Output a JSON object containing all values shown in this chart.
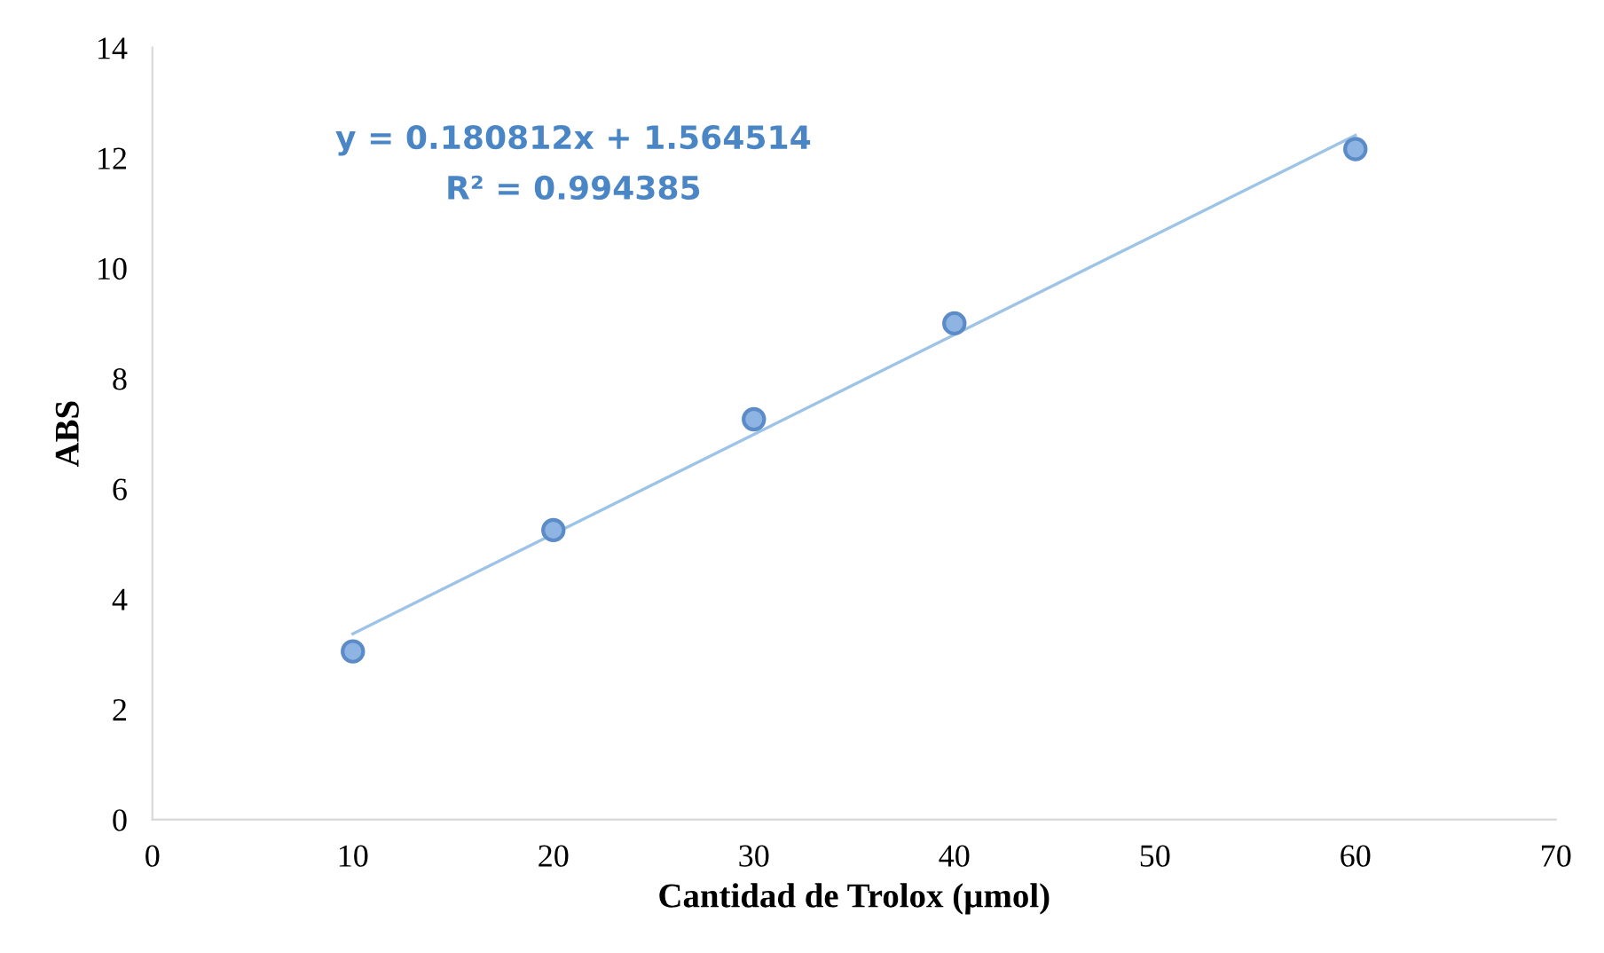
{
  "chart_data": {
    "type": "scatter",
    "xlabel": "Cantidad de Trolox (µmol)",
    "ylabel": "ABS",
    "xlim": [
      0,
      70
    ],
    "xticks": [
      0,
      10,
      20,
      30,
      40,
      50,
      60,
      70
    ],
    "ylim": [
      0,
      14
    ],
    "yticks": [
      0,
      2,
      4,
      6,
      8,
      10,
      12,
      14
    ],
    "grid": false,
    "legend": false,
    "marker": "circle",
    "annotations": [
      "y = 0.180812x + 1.564514",
      "R² = 0.994385"
    ],
    "series": [
      {
        "color": "#8eb4e3",
        "x": [
          10,
          20,
          30,
          40,
          60
        ],
        "values": [
          3.05,
          5.25,
          7.26,
          9.0,
          12.16
        ]
      },
      {
        "type": "line",
        "color": "#9dc3e6",
        "x": [
          10,
          60
        ],
        "values": [
          3.37,
          12.41
        ],
        "marker": "none",
        "line_style": "solid"
      }
    ]
  }
}
